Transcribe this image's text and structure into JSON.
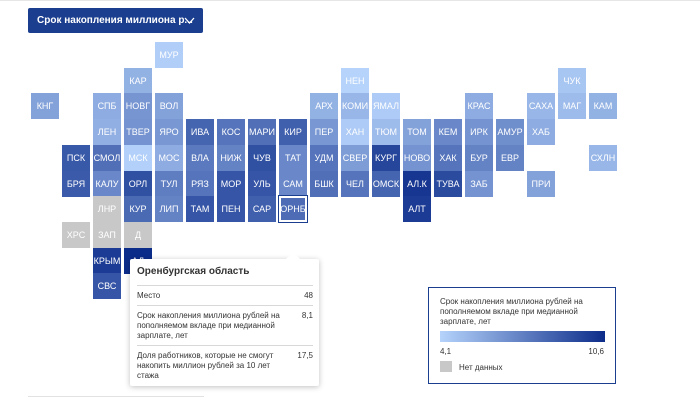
{
  "dropdown": {
    "label": "Срок накопления миллиона р..."
  },
  "colors": {
    "nodata": "#c8c8c8",
    "scale_low": "#b5d3fb",
    "scale_high": "#0c2c8a",
    "accent": "#1b3e8f"
  },
  "map_data": {
    "value_range": [
      4.1,
      10.6
    ],
    "regions": [
      {
        "code": "МУР",
        "row": 0,
        "col": 4,
        "value": 4.3
      },
      {
        "code": "КАР",
        "row": 1,
        "col": 3,
        "value": 5.4
      },
      {
        "code": "НЕН",
        "row": 1,
        "col": 10,
        "value": 4.1
      },
      {
        "code": "ЧУК",
        "row": 1,
        "col": 17,
        "value": 4.6
      },
      {
        "code": "КНГ",
        "row": 2,
        "col": 0,
        "value": 6.0
      },
      {
        "code": "СПБ",
        "row": 2,
        "col": 2,
        "value": 5.6
      },
      {
        "code": "НОВГ",
        "row": 2,
        "col": 3,
        "value": 6.5
      },
      {
        "code": "ВОЛ",
        "row": 2,
        "col": 4,
        "value": 6.0
      },
      {
        "code": "АРХ",
        "row": 2,
        "col": 9,
        "value": 5.4
      },
      {
        "code": "КОМИ",
        "row": 2,
        "col": 10,
        "value": 5.2
      },
      {
        "code": "ЯМАЛ",
        "row": 2,
        "col": 11,
        "value": 4.4
      },
      {
        "code": "КРАС",
        "row": 2,
        "col": 14,
        "value": 5.6
      },
      {
        "code": "САХА",
        "row": 2,
        "col": 16,
        "value": 5.2
      },
      {
        "code": "МАГ",
        "row": 2,
        "col": 17,
        "value": 5.0
      },
      {
        "code": "КАМ",
        "row": 2,
        "col": 18,
        "value": 5.4
      },
      {
        "code": "ЛЕН",
        "row": 3,
        "col": 2,
        "value": 5.5
      },
      {
        "code": "ТВЕР",
        "row": 3,
        "col": 3,
        "value": 6.6
      },
      {
        "code": "ЯРО",
        "row": 3,
        "col": 4,
        "value": 6.4
      },
      {
        "code": "ИВА",
        "row": 3,
        "col": 5,
        "value": 8.4
      },
      {
        "code": "КОС",
        "row": 3,
        "col": 6,
        "value": 7.8
      },
      {
        "code": "МАРИ",
        "row": 3,
        "col": 7,
        "value": 8.0
      },
      {
        "code": "КИР",
        "row": 3,
        "col": 8,
        "value": 8.6
      },
      {
        "code": "ПЕР",
        "row": 3,
        "col": 9,
        "value": 6.4
      },
      {
        "code": "ХАН",
        "row": 3,
        "col": 10,
        "value": 4.4
      },
      {
        "code": "ТЮМ",
        "row": 3,
        "col": 11,
        "value": 5.0
      },
      {
        "code": "ТОМ",
        "row": 3,
        "col": 12,
        "value": 6.0
      },
      {
        "code": "КЕМ",
        "row": 3,
        "col": 13,
        "value": 7.0
      },
      {
        "code": "ИРК",
        "row": 3,
        "col": 14,
        "value": 6.6
      },
      {
        "code": "АМУР",
        "row": 3,
        "col": 15,
        "value": 6.8
      },
      {
        "code": "ХАБ",
        "row": 3,
        "col": 16,
        "value": 5.6
      },
      {
        "code": "ПСК",
        "row": 4,
        "col": 1,
        "value": 8.9
      },
      {
        "code": "СМОЛ",
        "row": 4,
        "col": 2,
        "value": 8.0
      },
      {
        "code": "МСК",
        "row": 4,
        "col": 3,
        "value": 4.2
      },
      {
        "code": "МОС",
        "row": 4,
        "col": 4,
        "value": 5.6
      },
      {
        "code": "ВЛА",
        "row": 4,
        "col": 5,
        "value": 7.6
      },
      {
        "code": "НИЖ",
        "row": 4,
        "col": 6,
        "value": 7.2
      },
      {
        "code": "ЧУВ",
        "row": 4,
        "col": 7,
        "value": 9.2
      },
      {
        "code": "ТАТ",
        "row": 4,
        "col": 8,
        "value": 7.0
      },
      {
        "code": "УДМ",
        "row": 4,
        "col": 9,
        "value": 7.8
      },
      {
        "code": "СВЕР",
        "row": 4,
        "col": 10,
        "value": 6.2
      },
      {
        "code": "КУРГ",
        "row": 4,
        "col": 11,
        "value": 9.6
      },
      {
        "code": "НОВО",
        "row": 4,
        "col": 12,
        "value": 6.6
      },
      {
        "code": "ХАК",
        "row": 4,
        "col": 13,
        "value": 7.8
      },
      {
        "code": "БУР",
        "row": 4,
        "col": 14,
        "value": 7.2
      },
      {
        "code": "ЕВР",
        "row": 4,
        "col": 15,
        "value": 7.2
      },
      {
        "code": "СХЛН",
        "row": 4,
        "col": 18,
        "value": 5.2
      },
      {
        "code": "БРЯ",
        "row": 5,
        "col": 1,
        "value": 8.8
      },
      {
        "code": "КАЛУ",
        "row": 5,
        "col": 2,
        "value": 7.0
      },
      {
        "code": "ОРЛ",
        "row": 5,
        "col": 3,
        "value": 9.2
      },
      {
        "code": "ТУЛ",
        "row": 5,
        "col": 4,
        "value": 7.4
      },
      {
        "code": "РЯЗ",
        "row": 5,
        "col": 5,
        "value": 7.8
      },
      {
        "code": "МОР",
        "row": 5,
        "col": 6,
        "value": 9.0
      },
      {
        "code": "УЛЬ",
        "row": 5,
        "col": 7,
        "value": 9.0
      },
      {
        "code": "САМ",
        "row": 5,
        "col": 8,
        "value": 7.0
      },
      {
        "code": "БШК",
        "row": 5,
        "col": 9,
        "value": 8.0
      },
      {
        "code": "ЧЕЛ",
        "row": 5,
        "col": 10,
        "value": 7.8
      },
      {
        "code": "ОМСК",
        "row": 5,
        "col": 11,
        "value": 8.4
      },
      {
        "code": "АЛ.К",
        "row": 5,
        "col": 12,
        "value": 10.2
      },
      {
        "code": "ТУВА",
        "row": 5,
        "col": 13,
        "value": 9.4
      },
      {
        "code": "ЗАБ",
        "row": 5,
        "col": 14,
        "value": 6.6
      },
      {
        "code": "ПРИ",
        "row": 5,
        "col": 16,
        "value": 6.0
      },
      {
        "code": "ЛНР",
        "row": 6,
        "col": 2,
        "value": null
      },
      {
        "code": "КУР",
        "row": 6,
        "col": 3,
        "value": 8.2
      },
      {
        "code": "ЛИП",
        "row": 6,
        "col": 4,
        "value": 7.2
      },
      {
        "code": "ТАМ",
        "row": 6,
        "col": 5,
        "value": 9.0
      },
      {
        "code": "ПЕН",
        "row": 6,
        "col": 6,
        "value": 9.0
      },
      {
        "code": "САР",
        "row": 6,
        "col": 7,
        "value": 8.6
      },
      {
        "code": "ОРНБ",
        "row": 6,
        "col": 8,
        "value": 8.1
      },
      {
        "code": "АЛТ",
        "row": 6,
        "col": 12,
        "value": 10.0
      },
      {
        "code": "ХРС",
        "row": 7,
        "col": 1,
        "value": null
      },
      {
        "code": "ЗАП",
        "row": 7,
        "col": 2,
        "value": null
      },
      {
        "code": "Д",
        "row": 7,
        "col": 3,
        "value": null
      },
      {
        "code": "КРЫМ",
        "row": 8,
        "col": 2,
        "value": 10.0
      },
      {
        "code": "АД",
        "row": 8,
        "col": 3,
        "value": 10.6
      },
      {
        "code": "СВС",
        "row": 9,
        "col": 2,
        "value": 9.0
      }
    ]
  },
  "tooltip": {
    "title": "Оренбургская область",
    "rows": [
      {
        "label": "Место",
        "value": "48"
      },
      {
        "label": "Срок накопления миллиона рублей на пополняемом вкладе при медианной зарплате, лет",
        "value": "8,1"
      },
      {
        "label": "Доля работников, которые не смогут накопить миллион рублей за 10 лет стажа",
        "value": "17,5"
      }
    ]
  },
  "legend": {
    "title": "Срок накопления миллиона рублей на пополняемом вкладе при медианной зарплате, лет",
    "min_label": "4,1",
    "max_label": "10,6",
    "nodata_label": "Нет данных"
  },
  "selected_region": "ОРНБ"
}
